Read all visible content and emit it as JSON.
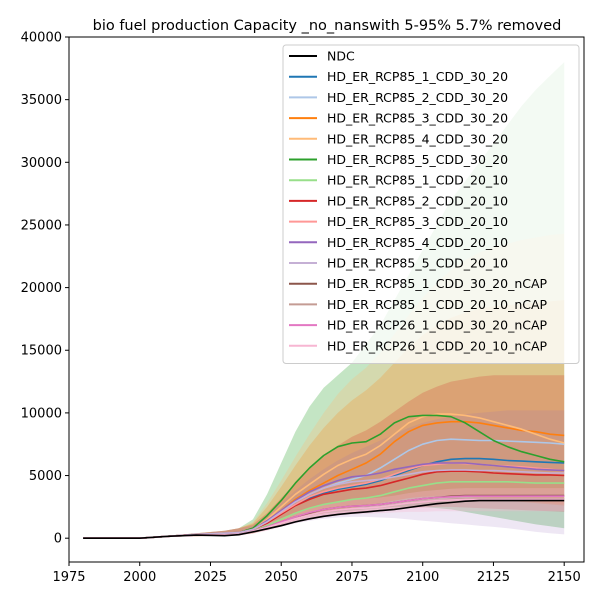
{
  "chart_data": {
    "type": "line",
    "title": "bio fuel production Capacity _no_nanswith 5-95% 5.7% removed",
    "xlabel": "",
    "ylabel": "",
    "xlim": [
      1975,
      2157
    ],
    "ylim": [
      -1900,
      40000
    ],
    "xticks": [
      1975,
      2000,
      2025,
      2050,
      2075,
      2100,
      2125,
      2150
    ],
    "yticks": [
      0,
      5000,
      10000,
      15000,
      20000,
      25000,
      30000,
      35000,
      40000
    ],
    "grid": false,
    "legend_position": "top-right",
    "x": [
      1980,
      1990,
      2000,
      2010,
      2020,
      2030,
      2035,
      2040,
      2045,
      2050,
      2055,
      2060,
      2065,
      2070,
      2075,
      2080,
      2085,
      2090,
      2095,
      2100,
      2105,
      2110,
      2115,
      2120,
      2125,
      2130,
      2135,
      2140,
      2145,
      2150
    ],
    "series": [
      {
        "name": "NDC",
        "color": "#000000",
        "values": [
          0,
          0,
          0,
          150,
          250,
          200,
          280,
          500,
          750,
          1000,
          1300,
          1550,
          1750,
          1900,
          2000,
          2100,
          2200,
          2300,
          2450,
          2600,
          2750,
          2850,
          2950,
          3000,
          3000,
          3000,
          3000,
          3000,
          3000,
          3000
        ]
      },
      {
        "name": "HD_ER_RCP85_1_CDD_30_20",
        "color": "#1f77b4",
        "values": [
          0,
          0,
          0,
          150,
          300,
          400,
          450,
          700,
          1300,
          2000,
          2700,
          3200,
          3600,
          3900,
          4100,
          4300,
          4600,
          5000,
          5400,
          5800,
          6100,
          6300,
          6350,
          6350,
          6300,
          6200,
          6150,
          6100,
          6050,
          6000
        ]
      },
      {
        "name": "HD_ER_RCP85_2_CDD_30_20",
        "color": "#aec7e8",
        "values": [
          0,
          0,
          0,
          150,
          300,
          400,
          450,
          700,
          1300,
          2100,
          2900,
          3500,
          4000,
          4400,
          4700,
          5000,
          5600,
          6300,
          7000,
          7500,
          7800,
          7900,
          7850,
          7800,
          7800,
          7750,
          7700,
          7650,
          7600,
          7500
        ]
      },
      {
        "name": "HD_ER_RCP85_3_CDD_30_20",
        "color": "#ff7f0e",
        "values": [
          0,
          0,
          0,
          150,
          300,
          400,
          450,
          700,
          1300,
          2200,
          3100,
          3800,
          4400,
          5000,
          5500,
          6000,
          6700,
          7700,
          8500,
          9000,
          9200,
          9300,
          9300,
          9200,
          9000,
          8800,
          8600,
          8500,
          8300,
          8200
        ]
      },
      {
        "name": "HD_ER_RCP85_4_CDD_30_20",
        "color": "#ffbb78",
        "values": [
          0,
          0,
          0,
          150,
          300,
          400,
          450,
          700,
          1500,
          2500,
          3500,
          4300,
          5100,
          5800,
          6300,
          6700,
          7400,
          8300,
          9200,
          9700,
          9900,
          9900,
          9800,
          9600,
          9300,
          9000,
          8700,
          8300,
          7900,
          7600
        ]
      },
      {
        "name": "HD_ER_RCP85_5_CDD_30_20",
        "color": "#2ca02c",
        "values": [
          0,
          0,
          0,
          150,
          300,
          400,
          450,
          800,
          1800,
          3000,
          4400,
          5600,
          6600,
          7300,
          7600,
          7700,
          8300,
          9200,
          9700,
          9800,
          9800,
          9700,
          9200,
          8500,
          7800,
          7300,
          6900,
          6600,
          6300,
          6100
        ]
      },
      {
        "name": "HD_ER_RCP85_1_CDD_20_10",
        "color": "#98df8a",
        "values": [
          0,
          0,
          0,
          150,
          300,
          400,
          450,
          600,
          1000,
          1500,
          2000,
          2400,
          2700,
          2900,
          3100,
          3200,
          3400,
          3700,
          4000,
          4200,
          4400,
          4500,
          4500,
          4500,
          4500,
          4500,
          4450,
          4400,
          4400,
          4400
        ]
      },
      {
        "name": "HD_ER_RCP85_2_CDD_20_10",
        "color": "#d62728",
        "values": [
          0,
          0,
          0,
          150,
          300,
          400,
          450,
          700,
          1200,
          1900,
          2600,
          3100,
          3500,
          3700,
          3900,
          4000,
          4200,
          4500,
          4800,
          5100,
          5300,
          5350,
          5350,
          5300,
          5200,
          5150,
          5100,
          5050,
          5050,
          5000
        ]
      },
      {
        "name": "HD_ER_RCP85_3_CDD_20_10",
        "color": "#ff9896",
        "values": [
          0,
          0,
          0,
          150,
          300,
          400,
          450,
          700,
          1300,
          2000,
          2700,
          3300,
          3700,
          4000,
          4200,
          4400,
          4700,
          5100,
          5500,
          5800,
          5900,
          6000,
          5950,
          5900,
          5800,
          5750,
          5700,
          5600,
          5500,
          5400
        ]
      },
      {
        "name": "HD_ER_RCP85_4_CDD_20_10",
        "color": "#9467bd",
        "values": [
          0,
          0,
          0,
          150,
          300,
          400,
          450,
          700,
          1400,
          2200,
          3000,
          3700,
          4200,
          4600,
          4900,
          5000,
          5200,
          5500,
          5700,
          5900,
          6000,
          6000,
          6000,
          5900,
          5800,
          5700,
          5600,
          5500,
          5450,
          5400
        ]
      },
      {
        "name": "HD_ER_RCP85_5_CDD_20_10",
        "color": "#c5b0d5",
        "values": [
          0,
          0,
          0,
          150,
          300,
          400,
          450,
          700,
          1300,
          2100,
          2900,
          3500,
          4000,
          4300,
          4500,
          4600,
          4700,
          4900,
          5100,
          5300,
          5400,
          5450,
          5450,
          5400,
          5400,
          5350,
          5300,
          5250,
          5200,
          5200
        ]
      },
      {
        "name": "HD_ER_RCP85_1_CDD_30_20_nCAP",
        "color": "#8c564b",
        "values": [
          0,
          0,
          0,
          150,
          250,
          250,
          300,
          550,
          900,
          1300,
          1700,
          2000,
          2300,
          2450,
          2550,
          2600,
          2700,
          2850,
          3000,
          3150,
          3250,
          3350,
          3400,
          3400,
          3400,
          3400,
          3400,
          3400,
          3400,
          3400
        ]
      },
      {
        "name": "HD_ER_RCP85_1_CDD_20_10_nCAP",
        "color": "#c49c94",
        "values": [
          0,
          0,
          0,
          150,
          250,
          250,
          300,
          550,
          850,
          1200,
          1550,
          1850,
          2100,
          2250,
          2350,
          2400,
          2500,
          2650,
          2800,
          2900,
          3000,
          3100,
          3150,
          3150,
          3150,
          3150,
          3150,
          3150,
          3150,
          3150
        ]
      },
      {
        "name": "HD_ER_RCP26_1_CDD_30_20_nCAP",
        "color": "#e377c2",
        "values": [
          0,
          0,
          0,
          150,
          250,
          250,
          300,
          550,
          900,
          1300,
          1700,
          2050,
          2300,
          2450,
          2550,
          2600,
          2700,
          2850,
          3000,
          3150,
          3250,
          3300,
          3350,
          3350,
          3350,
          3350,
          3350,
          3350,
          3350,
          3350
        ]
      },
      {
        "name": "HD_ER_RCP26_1_CDD_20_10_nCAP",
        "color": "#f7b6d2",
        "values": [
          0,
          0,
          0,
          150,
          250,
          250,
          300,
          550,
          850,
          1200,
          1550,
          1850,
          2100,
          2250,
          2350,
          2400,
          2500,
          2650,
          2800,
          2900,
          3000,
          3050,
          3100,
          3100,
          3100,
          3100,
          3100,
          3100,
          3100,
          3100
        ]
      }
    ],
    "bands": [
      {
        "color": "#2ca02c",
        "opacity": 0.28,
        "lower": [
          0,
          0,
          0,
          100,
          150,
          200,
          250,
          400,
          700,
          1100,
          1500,
          1800,
          2000,
          2100,
          2200,
          2300,
          2400,
          2500,
          2500,
          2500,
          2400,
          2300,
          2100,
          1900,
          1700,
          1500,
          1300,
          1100,
          950,
          800
        ],
        "upper": [
          0,
          0,
          0,
          200,
          400,
          600,
          800,
          1500,
          3500,
          6000,
          8500,
          10500,
          12000,
          13000,
          14000,
          15500,
          17000,
          19000,
          21000,
          23000,
          25000,
          27000,
          28500,
          30000,
          31500,
          33000,
          34500,
          35800,
          36900,
          38000
        ]
      },
      {
        "color": "#ffbb78",
        "opacity": 0.28,
        "lower": [
          0,
          0,
          0,
          100,
          150,
          200,
          250,
          400,
          700,
          1100,
          1500,
          1800,
          2000,
          2200,
          2400,
          2600,
          2800,
          3000,
          3200,
          3300,
          3400,
          3400,
          3400,
          3300,
          3200,
          3100,
          3000,
          2900,
          2800,
          2700
        ],
        "upper": [
          0,
          0,
          0,
          200,
          400,
          600,
          800,
          1300,
          2800,
          4600,
          6500,
          8300,
          10000,
          11500,
          12700,
          13600,
          14800,
          16300,
          17800,
          19200,
          20400,
          21400,
          22200,
          22800,
          23200,
          23500,
          23800,
          24000,
          24200,
          24300
        ]
      },
      {
        "color": "#ff7f0e",
        "opacity": 0.22,
        "lower": [
          0,
          0,
          0,
          100,
          150,
          200,
          250,
          400,
          700,
          1100,
          1500,
          1800,
          2000,
          2200,
          2400,
          2600,
          2800,
          3000,
          3200,
          3300,
          3300,
          3300,
          3300,
          3200,
          3100,
          3000,
          2900,
          2800,
          2700,
          2600
        ],
        "upper": [
          0,
          0,
          0,
          200,
          400,
          600,
          800,
          1200,
          2500,
          4100,
          5800,
          7400,
          8800,
          10000,
          11000,
          11800,
          12800,
          14000,
          15200,
          16200,
          17000,
          17600,
          18000,
          18300,
          18500,
          18600,
          18700,
          18800,
          18900,
          19000
        ]
      },
      {
        "color": "#d62728",
        "opacity": 0.22,
        "lower": [
          0,
          0,
          0,
          100,
          150,
          200,
          250,
          400,
          650,
          1000,
          1300,
          1550,
          1750,
          1900,
          2000,
          2100,
          2200,
          2300,
          2400,
          2450,
          2500,
          2500,
          2450,
          2400,
          2350,
          2300,
          2250,
          2200,
          2150,
          2100
        ],
        "upper": [
          0,
          0,
          0,
          200,
          400,
          600,
          800,
          1100,
          2000,
          3200,
          4400,
          5500,
          6500,
          7400,
          8100,
          8600,
          9300,
          10100,
          10900,
          11600,
          12100,
          12500,
          12700,
          12900,
          13000,
          13000,
          13000,
          13000,
          13000,
          13000
        ]
      },
      {
        "color": "#9467bd",
        "opacity": 0.16,
        "lower": [
          0,
          0,
          0,
          100,
          150,
          200,
          250,
          400,
          650,
          950,
          1200,
          1400,
          1550,
          1650,
          1700,
          1700,
          1650,
          1600,
          1500,
          1400,
          1300,
          1200,
          1100,
          1000,
          900,
          800,
          650,
          500,
          400,
          300
        ],
        "upper": [
          0,
          0,
          0,
          200,
          400,
          600,
          800,
          1000,
          1800,
          2800,
          3800,
          4700,
          5500,
          6200,
          6800,
          7300,
          7800,
          8300,
          8800,
          9200,
          9500,
          9700,
          9900,
          10000,
          10100,
          10200,
          10200,
          10200,
          10200,
          10200
        ]
      },
      {
        "color": "#f7b6d2",
        "opacity": 0.3,
        "lower": [
          0,
          0,
          0,
          100,
          150,
          150,
          200,
          350,
          600,
          900,
          1200,
          1450,
          1650,
          1800,
          1900,
          1950,
          2000,
          2050,
          2100,
          2100,
          2150,
          2150,
          2150,
          2150,
          2150,
          2150,
          2150,
          2150,
          2150,
          2150
        ],
        "upper": [
          0,
          0,
          0,
          200,
          350,
          350,
          400,
          750,
          1150,
          1600,
          2050,
          2400,
          2700,
          2900,
          3050,
          3150,
          3250,
          3400,
          3600,
          3750,
          3850,
          3950,
          4000,
          4000,
          4000,
          4000,
          4000,
          4000,
          4000,
          4000
        ]
      }
    ]
  }
}
